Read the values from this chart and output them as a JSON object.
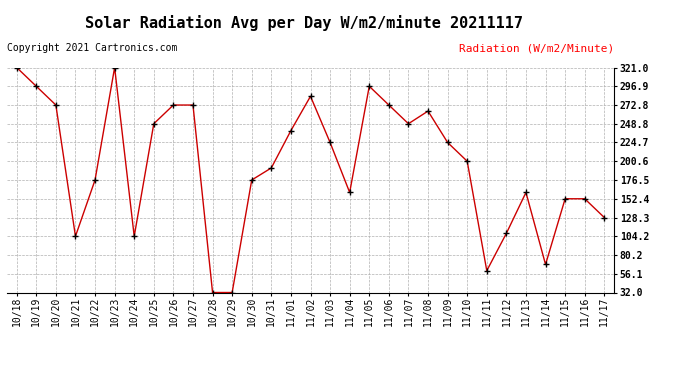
{
  "title": "Solar Radiation Avg per Day W/m2/minute 20211117",
  "copyright_text": "Copyright 2021 Cartronics.com",
  "legend_label": "Radiation (W/m2/Minute)",
  "dates": [
    "10/18",
    "10/19",
    "10/20",
    "10/21",
    "10/22",
    "10/23",
    "10/24",
    "10/25",
    "10/26",
    "10/27",
    "10/28",
    "10/29",
    "10/30",
    "10/31",
    "11/01",
    "11/02",
    "11/03",
    "11/04",
    "11/05",
    "11/06",
    "11/07",
    "11/08",
    "11/09",
    "11/10",
    "11/11",
    "11/12",
    "11/13",
    "11/14",
    "11/15",
    "11/16",
    "11/17"
  ],
  "values": [
    321.0,
    296.9,
    272.8,
    104.2,
    176.5,
    321.0,
    104.2,
    248.8,
    272.8,
    272.8,
    32.0,
    32.0,
    176.5,
    192.0,
    240.0,
    284.0,
    224.7,
    160.5,
    296.9,
    272.8,
    248.8,
    265.0,
    224.7,
    200.6,
    60.0,
    108.0,
    160.5,
    68.0,
    152.4,
    152.4,
    128.3
  ],
  "ylim": [
    32.0,
    321.0
  ],
  "yticks": [
    32.0,
    56.1,
    80.2,
    104.2,
    128.3,
    152.4,
    176.5,
    200.6,
    224.7,
    248.8,
    272.8,
    296.9,
    321.0
  ],
  "line_color": "#cc0000",
  "marker_color": "#000000",
  "grid_color": "#b0b0b0",
  "background_color": "#ffffff",
  "title_fontsize": 11,
  "tick_fontsize": 7,
  "copyright_fontsize": 7,
  "legend_fontsize": 8
}
